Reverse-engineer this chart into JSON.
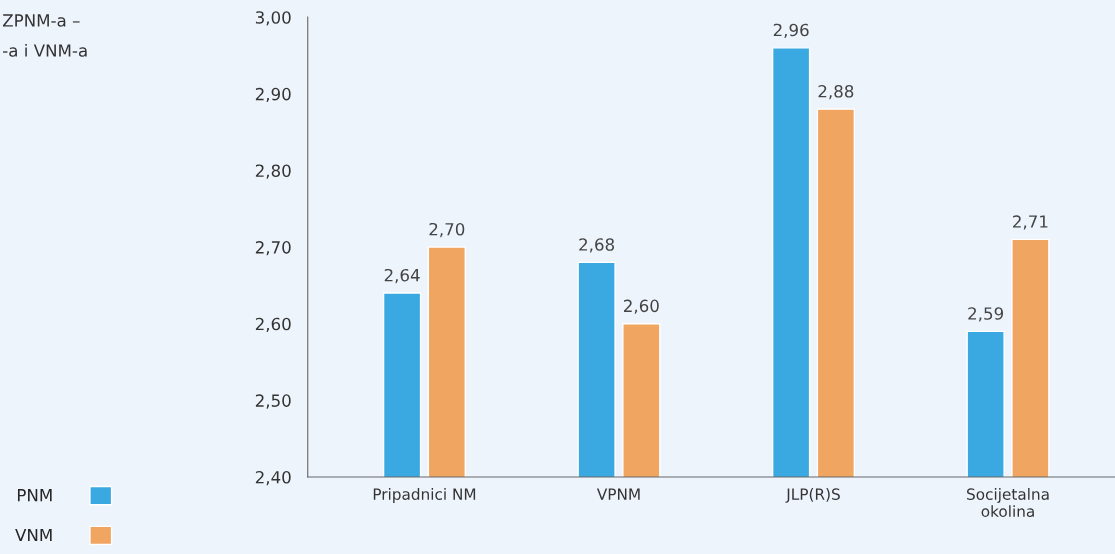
{
  "chart_data": {
    "type": "bar",
    "title": "ZPNM-a –\n-a i VNM-a",
    "categories": [
      "Pripadnici NM",
      "VPNM",
      "JLP(R)S",
      "Socijetalna\nokolina"
    ],
    "series": [
      {
        "name": "PNM",
        "color": "#3aa9e1",
        "values": [
          2.64,
          2.68,
          2.96,
          2.59
        ],
        "value_labels": [
          "2,64",
          "2,68",
          "2,96",
          "2,59"
        ]
      },
      {
        "name": "VNM",
        "color": "#f0a660",
        "values": [
          2.7,
          2.6,
          2.88,
          2.71
        ],
        "value_labels": [
          "2,70",
          "2,60",
          "2,88",
          "2,71"
        ]
      }
    ],
    "ylim": [
      2.4,
      3.0
    ],
    "yticks": [
      {
        "value": 2.4,
        "label": "2,40"
      },
      {
        "value": 2.5,
        "label": "2,50"
      },
      {
        "value": 2.6,
        "label": "2,60"
      },
      {
        "value": 2.7,
        "label": "2,70"
      },
      {
        "value": 2.8,
        "label": "2,80"
      },
      {
        "value": 2.9,
        "label": "2,90"
      },
      {
        "value": 3.0,
        "label": "3,00"
      }
    ],
    "grid": false,
    "legend": "bottom left"
  }
}
